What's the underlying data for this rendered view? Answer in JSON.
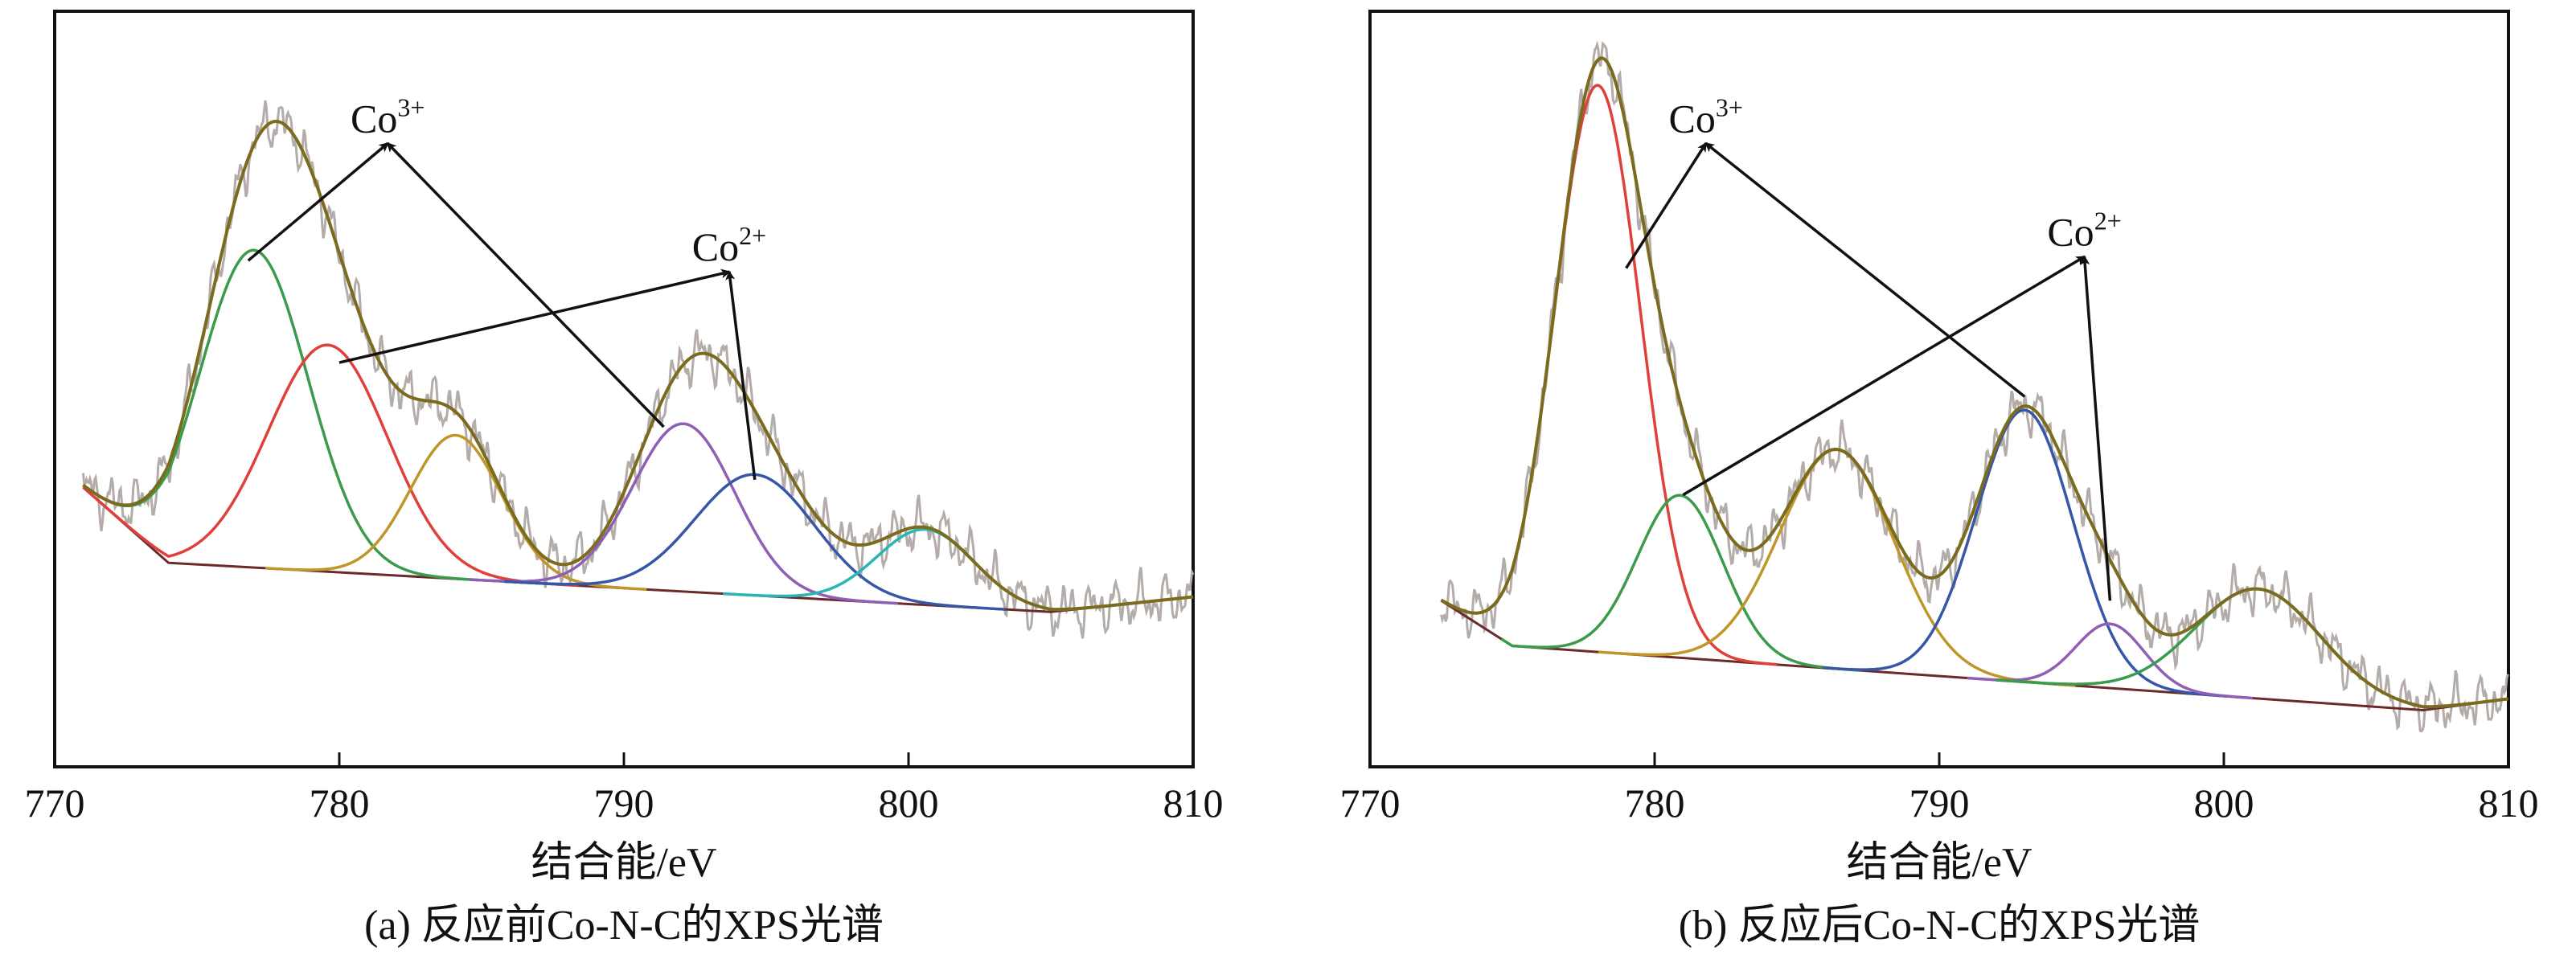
{
  "chart_data": [
    {
      "type": "line",
      "caption": "(a) 反应前Co-N-C的XPS光谱",
      "xlabel": "结合能/eV",
      "ylabel": "",
      "xlim": [
        770,
        810
      ],
      "xticks": [
        770,
        780,
        790,
        800,
        810
      ],
      "grid": false,
      "x_range": [
        771,
        810
      ],
      "baseline": [
        [
          771,
          0.37
        ],
        [
          774,
          0.27
        ],
        [
          805,
          0.205
        ],
        [
          810,
          0.225
        ]
      ],
      "peaks": [
        {
          "name": "green",
          "color": "#3a9c4a",
          "center": 777.0,
          "height": 0.42,
          "sigma": 1.9
        },
        {
          "name": "red",
          "color": "#e0403a",
          "center": 779.6,
          "height": 0.3,
          "sigma": 2.1
        },
        {
          "name": "orange",
          "color": "#c0962a",
          "center": 784.1,
          "height": 0.19,
          "sigma": 1.6
        },
        {
          "name": "purple",
          "color": "#8e5fb5",
          "center": 792.1,
          "height": 0.222,
          "sigma": 1.8
        },
        {
          "name": "blue",
          "color": "#3657a7",
          "center": 794.6,
          "height": 0.16,
          "sigma": 2.1
        },
        {
          "name": "cyan",
          "color": "#2ab5b5",
          "center": 800.6,
          "height": 0.1,
          "sigma": 1.7
        }
      ],
      "annotations": [
        {
          "label": "Co",
          "superscript": "3+",
          "at": [
            781.7,
            0.84
          ],
          "arrows_from": [
            [
              776.8,
              0.67
            ],
            [
              791.4,
              0.45
            ]
          ]
        },
        {
          "label": "Co",
          "superscript": "2+",
          "at": [
            793.7,
            0.67
          ],
          "arrows_from": [
            [
              780.0,
              0.535
            ],
            [
              794.6,
              0.38
            ]
          ]
        }
      ]
    },
    {
      "type": "line",
      "caption": "(b) 反应后Co-N-C的XPS光谱",
      "xlabel": "结合能/eV",
      "ylabel": "",
      "xlim": [
        770,
        810
      ],
      "xticks": [
        770,
        780,
        790,
        800,
        810
      ],
      "grid": false,
      "x_range": [
        772.5,
        810
      ],
      "baseline": [
        [
          772.5,
          0.22
        ],
        [
          775,
          0.16
        ],
        [
          807,
          0.075
        ],
        [
          810,
          0.09
        ]
      ],
      "peaks": [
        {
          "name": "red",
          "color": "#e0403a",
          "center": 778.0,
          "height": 0.75,
          "sigma": 1.5
        },
        {
          "name": "green",
          "color": "#3a9c4a",
          "center": 780.9,
          "height": 0.215,
          "sigma": 1.5
        },
        {
          "name": "orange",
          "color": "#c0962a",
          "center": 786.4,
          "height": 0.29,
          "sigma": 2.0
        },
        {
          "name": "blue",
          "color": "#3657a7",
          "center": 793.0,
          "height": 0.36,
          "sigma": 1.7
        },
        {
          "name": "purple",
          "color": "#8e5fb5",
          "center": 796.0,
          "height": 0.085,
          "sigma": 1.2
        },
        {
          "name": "green2",
          "color": "#3a9c4a",
          "center": 801.2,
          "height": 0.145,
          "sigma": 2.2
        }
      ],
      "annotations": [
        {
          "label": "Co",
          "superscript": "3+",
          "at": [
            781.8,
            0.84
          ],
          "arrows_from": [
            [
              779.0,
              0.66
            ],
            [
              793.0,
              0.49
            ]
          ]
        },
        {
          "label": "Co",
          "superscript": "2+",
          "at": [
            795.1,
            0.69
          ],
          "arrows_from": [
            [
              781.0,
              0.36
            ],
            [
              796.0,
              0.22
            ]
          ]
        }
      ]
    }
  ]
}
